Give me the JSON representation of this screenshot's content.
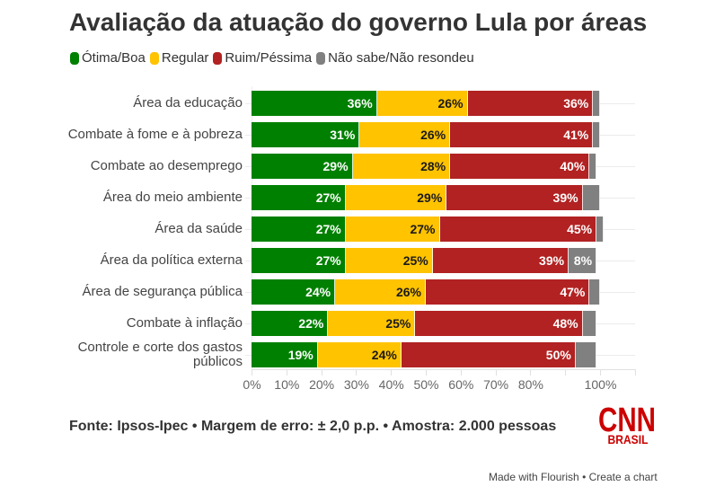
{
  "chart_data": {
    "type": "bar",
    "orientation": "horizontal",
    "stacked": true,
    "title": "Avaliação da atuação do governo Lula por áreas",
    "categories": [
      "Área da educação",
      "Combate à fome e à pobreza",
      "Combate ao desemprego",
      "Área do meio ambiente",
      "Área da saúde",
      "Área da política externa",
      "Área de segurança pública",
      "Combate à inflação",
      "Controle e corte dos gastos públicos"
    ],
    "series": [
      {
        "name": "Ótima/Boa",
        "color": "#008000",
        "label_color": "#ffffff",
        "values": [
          36,
          31,
          29,
          27,
          27,
          27,
          24,
          22,
          19
        ]
      },
      {
        "name": "Regular",
        "color": "#FFC300",
        "label_color": "#1a1a1a",
        "values": [
          26,
          26,
          28,
          29,
          27,
          25,
          26,
          25,
          24
        ]
      },
      {
        "name": "Ruim/Péssima",
        "color": "#B22222",
        "label_color": "#ffffff",
        "values": [
          36,
          41,
          40,
          39,
          45,
          39,
          47,
          48,
          50
        ]
      },
      {
        "name": "Não sabe/Não resondeu",
        "color": "#808080",
        "label_color": "#ffffff",
        "values": [
          2,
          2,
          2,
          5,
          2,
          8,
          3,
          4,
          6
        ]
      }
    ],
    "value_suffix": "%",
    "xlabel": "",
    "ylabel": "",
    "xlim": [
      0,
      110
    ],
    "xticks": [
      0,
      10,
      20,
      30,
      40,
      50,
      60,
      70,
      80,
      90,
      100,
      110
    ],
    "xtick_labels": [
      "0%",
      "10%",
      "20%",
      "30%",
      "40%",
      "50%",
      "60%",
      "70%",
      "80%",
      "",
      "100%",
      ""
    ],
    "grid": true,
    "legend_position": "top-left"
  },
  "footer": {
    "source": "Fonte: Ipsos-Ipec • Margem de erro: ± 2,0 p.p. • Amostra: 2.000 pessoas",
    "credit_link": "Made with Flourish",
    "separator": "•",
    "create_link": "Create a chart"
  },
  "logo": {
    "main": "CNN",
    "sub": "BRASIL",
    "color": "#CC0000"
  }
}
